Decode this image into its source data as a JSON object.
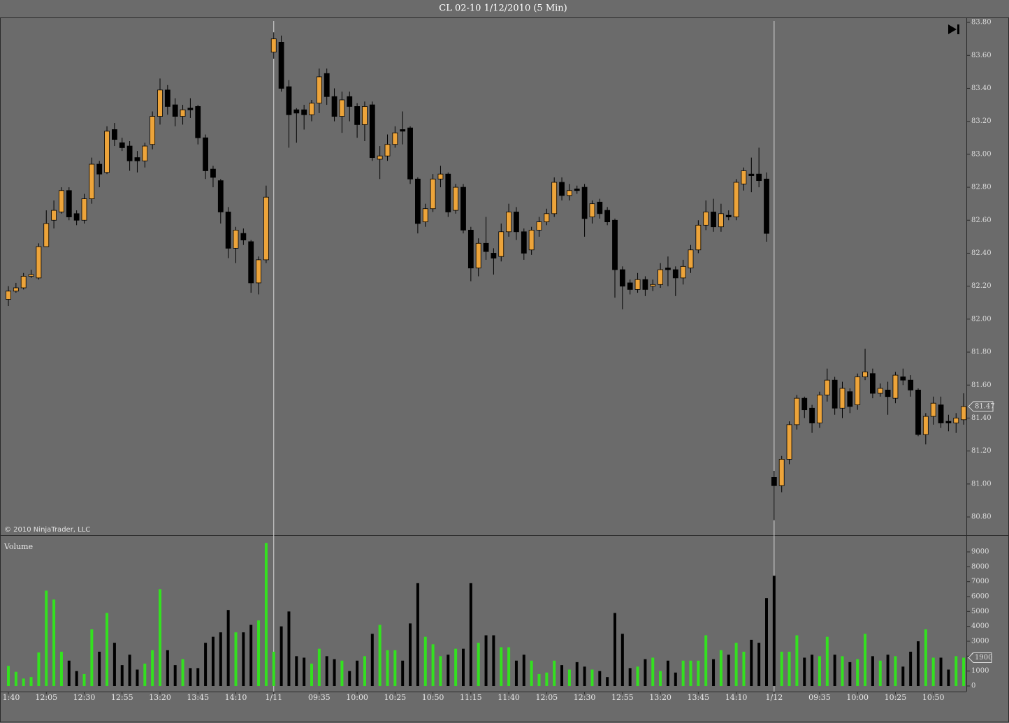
{
  "chart_data": [
    {
      "type": "candlestick",
      "title": "CL 02-10  1/12/2010 (5 Min)",
      "annotation": "© 2010 NinjaTrader, LLC",
      "up_color": "#eda43a",
      "down_color": "#000000",
      "open": [
        82.12,
        82.17,
        82.19,
        82.26,
        82.25,
        82.44,
        82.6,
        82.65,
        82.78,
        82.64,
        82.6,
        82.73,
        82.94,
        82.89,
        83.15,
        83.07,
        83.05,
        82.98,
        82.96,
        83.06,
        83.23,
        83.39,
        83.3,
        83.23,
        83.28,
        83.29,
        83.1,
        82.91,
        82.84,
        82.65,
        82.43,
        82.52,
        82.47,
        82.22,
        82.36,
        83.62,
        83.68,
        83.41,
        83.27,
        83.27,
        83.24,
        83.31,
        83.49,
        83.35,
        83.23,
        83.35,
        83.29,
        83.18,
        83.3,
        82.97,
        82.99,
        83.06,
        83.15,
        83.16,
        82.85,
        82.59,
        82.67,
        82.85,
        82.88,
        82.66,
        82.8,
        82.54,
        82.31,
        82.46,
        82.4,
        82.38,
        82.53,
        82.65,
        82.53,
        82.42,
        82.54,
        82.59,
        82.64,
        82.83,
        82.75,
        82.79,
        82.8,
        82.62,
        82.71,
        82.66,
        82.6,
        82.3,
        82.22,
        82.18,
        82.24,
        82.2,
        82.21,
        82.31,
        82.3,
        82.25,
        82.31,
        82.42,
        82.57,
        82.65,
        82.56,
        82.63,
        82.62,
        82.82,
        82.88,
        82.88,
        82.85,
        81.04,
        80.99,
        81.15,
        81.36,
        81.52,
        81.46,
        81.37,
        81.54,
        81.63,
        81.46,
        81.56,
        81.48,
        81.65,
        81.67,
        81.55,
        81.57,
        81.52,
        81.65,
        81.63,
        81.57,
        81.3,
        81.41,
        81.48,
        81.38,
        81.37,
        81.39
      ],
      "high": [
        82.2,
        82.22,
        82.28,
        82.3,
        82.46,
        82.66,
        82.72,
        82.8,
        82.8,
        82.66,
        82.76,
        82.98,
        82.96,
        83.17,
        83.19,
        83.1,
        83.08,
        83.02,
        83.07,
        83.26,
        83.46,
        83.42,
        83.34,
        83.3,
        83.34,
        83.3,
        83.12,
        82.93,
        82.85,
        82.68,
        82.56,
        82.55,
        82.48,
        82.38,
        82.81,
        83.74,
        83.72,
        83.45,
        83.28,
        83.3,
        83.33,
        83.52,
        83.52,
        83.4,
        83.38,
        83.38,
        83.31,
        83.32,
        83.32,
        83.05,
        83.12,
        83.17,
        83.26,
        83.17,
        82.86,
        82.7,
        82.88,
        82.93,
        82.89,
        82.82,
        82.82,
        82.56,
        82.49,
        82.62,
        82.43,
        82.58,
        82.7,
        82.68,
        82.55,
        82.56,
        82.62,
        82.67,
        82.86,
        82.86,
        82.82,
        82.81,
        82.82,
        82.72,
        82.73,
        82.68,
        82.61,
        82.32,
        82.24,
        82.28,
        82.26,
        82.24,
        82.34,
        82.38,
        82.32,
        82.36,
        82.45,
        82.6,
        82.72,
        82.73,
        82.7,
        82.66,
        82.85,
        82.92,
        82.98,
        83.04,
        82.89,
        81.08,
        81.17,
        81.38,
        81.54,
        81.53,
        81.48,
        81.56,
        81.7,
        81.65,
        81.62,
        81.58,
        81.67,
        81.82,
        81.7,
        81.61,
        81.62,
        81.68,
        81.7,
        81.66,
        81.58,
        81.43,
        81.53,
        81.53,
        81.42,
        81.43,
        81.55
      ],
      "low": [
        82.08,
        82.16,
        82.18,
        82.25,
        82.24,
        82.44,
        82.55,
        82.64,
        82.6,
        82.57,
        82.58,
        82.7,
        82.8,
        82.88,
        83.05,
        83.02,
        82.9,
        82.89,
        82.92,
        83.03,
        83.18,
        83.24,
        83.17,
        83.18,
        83.22,
        83.06,
        82.85,
        82.8,
        82.58,
        82.37,
        82.34,
        82.45,
        82.16,
        82.15,
        82.34,
        83.58,
        83.38,
        83.04,
        83.07,
        83.15,
        83.2,
        83.25,
        83.3,
        83.2,
        83.13,
        83.2,
        83.1,
        83.08,
        82.96,
        82.85,
        82.96,
        83.04,
        83.06,
        82.82,
        82.52,
        82.56,
        82.65,
        82.8,
        82.62,
        82.64,
        82.52,
        82.23,
        82.26,
        82.36,
        82.27,
        82.35,
        82.5,
        82.48,
        82.36,
        82.39,
        82.5,
        82.57,
        82.62,
        82.72,
        82.72,
        82.76,
        82.5,
        82.58,
        82.61,
        82.57,
        82.13,
        82.06,
        82.15,
        82.16,
        82.14,
        82.17,
        82.19,
        82.2,
        82.14,
        82.21,
        82.28,
        82.4,
        82.54,
        82.53,
        82.53,
        82.6,
        82.6,
        82.78,
        82.77,
        82.8,
        82.47,
        80.78,
        80.95,
        81.12,
        81.33,
        81.4,
        81.31,
        81.34,
        81.5,
        81.42,
        81.4,
        81.43,
        81.45,
        81.63,
        81.52,
        81.53,
        81.42,
        81.49,
        81.6,
        81.53,
        81.29,
        81.24,
        81.36,
        81.34,
        81.32,
        81.31,
        81.36
      ],
      "close": [
        82.17,
        82.19,
        82.26,
        82.27,
        82.44,
        82.58,
        82.66,
        82.78,
        82.62,
        82.6,
        82.73,
        82.94,
        82.88,
        83.14,
        83.09,
        83.04,
        82.96,
        82.96,
        83.05,
        83.23,
        83.39,
        83.29,
        83.23,
        83.27,
        83.27,
        83.1,
        82.9,
        82.86,
        82.65,
        82.43,
        82.54,
        82.48,
        82.22,
        82.36,
        82.74,
        83.7,
        83.4,
        83.24,
        83.25,
        83.24,
        83.31,
        83.47,
        83.35,
        83.23,
        83.33,
        83.29,
        83.18,
        83.29,
        82.98,
        82.99,
        83.06,
        83.13,
        83.14,
        82.85,
        82.58,
        82.67,
        82.85,
        82.88,
        82.65,
        82.8,
        82.54,
        82.31,
        82.46,
        82.41,
        82.37,
        82.53,
        82.65,
        82.53,
        82.4,
        82.54,
        82.59,
        82.64,
        82.83,
        82.75,
        82.78,
        82.78,
        82.61,
        82.7,
        82.64,
        82.59,
        82.3,
        82.2,
        82.18,
        82.24,
        82.18,
        82.21,
        82.3,
        82.3,
        82.25,
        82.32,
        82.42,
        82.57,
        82.65,
        82.56,
        82.64,
        82.62,
        82.83,
        82.9,
        82.87,
        82.84,
        82.52,
        80.99,
        81.15,
        81.36,
        81.52,
        81.45,
        81.37,
        81.54,
        81.63,
        81.46,
        81.58,
        81.47,
        81.65,
        81.68,
        81.55,
        81.58,
        81.53,
        81.66,
        81.63,
        81.57,
        81.3,
        81.41,
        81.49,
        81.37,
        81.37,
        81.4,
        81.47
      ],
      "ylim": [
        80.69,
        83.83
      ],
      "yticks": [
        {
          "value": 80.8,
          "label": "80.80"
        },
        {
          "value": 81.0,
          "label": "81.00"
        },
        {
          "value": 81.2,
          "label": "81.20"
        },
        {
          "value": 81.4,
          "label": "81.40"
        },
        {
          "value": 81.6,
          "label": "81.60"
        },
        {
          "value": 81.8,
          "label": "81.80"
        },
        {
          "value": 82.0,
          "label": "82.00"
        },
        {
          "value": 82.2,
          "label": "82.20"
        },
        {
          "value": 82.4,
          "label": "82.40"
        },
        {
          "value": 82.6,
          "label": "82.60"
        },
        {
          "value": 82.8,
          "label": "82.80"
        },
        {
          "value": 83.0,
          "label": "83.00"
        },
        {
          "value": 83.2,
          "label": "83.20"
        },
        {
          "value": 83.4,
          "label": "83.40"
        },
        {
          "value": 83.6,
          "label": "83.60"
        },
        {
          "value": 83.8,
          "label": "83.80"
        }
      ]
    },
    {
      "type": "bar",
      "title": "Volume",
      "up_color": "#33e11f",
      "down_color": "#000000",
      "categories": [
        "1:40",
        null,
        null,
        null,
        null,
        "12:05",
        null,
        null,
        null,
        null,
        "12:30",
        null,
        null,
        null,
        null,
        "12:55",
        null,
        null,
        null,
        null,
        "13:20",
        null,
        null,
        null,
        null,
        "13:45",
        null,
        null,
        null,
        null,
        "14:10",
        null,
        null,
        null,
        null,
        "1/11",
        null,
        null,
        null,
        null,
        null,
        "09:35",
        null,
        null,
        null,
        null,
        "10:00",
        null,
        null,
        null,
        null,
        "10:25",
        null,
        null,
        null,
        null,
        "10:50",
        null,
        null,
        null,
        null,
        "11:15",
        null,
        null,
        null,
        null,
        "11:40",
        null,
        null,
        null,
        null,
        "12:05",
        null,
        null,
        null,
        null,
        "12:30",
        null,
        null,
        null,
        null,
        "12:55",
        null,
        null,
        null,
        null,
        "13:20",
        null,
        null,
        null,
        null,
        "13:45",
        null,
        null,
        null,
        null,
        "14:10",
        null,
        null,
        null,
        null,
        "1/12",
        null,
        null,
        null,
        null,
        null,
        "09:35",
        null,
        null,
        null,
        null,
        "10:00",
        null,
        null,
        null,
        null,
        "10:25",
        null,
        null,
        null,
        null,
        "10:50",
        null,
        null,
        null,
        null
      ],
      "values": [
        1350,
        950,
        500,
        600,
        2250,
        6400,
        5800,
        2300,
        1700,
        1000,
        800,
        3800,
        2300,
        4900,
        2900,
        1400,
        2100,
        1100,
        1500,
        2400,
        6500,
        2400,
        1400,
        1800,
        1200,
        1200,
        2900,
        3300,
        3600,
        5100,
        3600,
        3600,
        4100,
        4400,
        9600,
        2300,
        4000,
        5000,
        2000,
        1900,
        1500,
        2500,
        2000,
        1800,
        1700,
        1000,
        1700,
        2000,
        3500,
        4100,
        2400,
        2400,
        1700,
        4200,
        6900,
        3300,
        2800,
        2000,
        2100,
        2500,
        2500,
        6900,
        2900,
        3400,
        3400,
        2600,
        2600,
        1700,
        2100,
        1700,
        800,
        900,
        1700,
        1400,
        1100,
        1600,
        1300,
        1100,
        1000,
        600,
        4900,
        3500,
        1200,
        1300,
        1800,
        1900,
        1000,
        1700,
        900,
        1700,
        1700,
        1700,
        3400,
        1800,
        2400,
        2100,
        2900,
        2300,
        3100,
        2900,
        5900,
        7400,
        2300,
        2300,
        3400,
        1900,
        2100,
        2000,
        3300,
        2100,
        2000,
        1600,
        1800,
        3500,
        2000,
        1700,
        2100,
        2000,
        1300,
        2300,
        3000,
        3800,
        1900,
        1900,
        1100,
        2000,
        1900
      ],
      "ylim": [
        0,
        10000
      ],
      "yticks": [
        0,
        1000,
        2000,
        3000,
        4000,
        5000,
        6000,
        7000,
        8000,
        9000
      ]
    }
  ]
}
